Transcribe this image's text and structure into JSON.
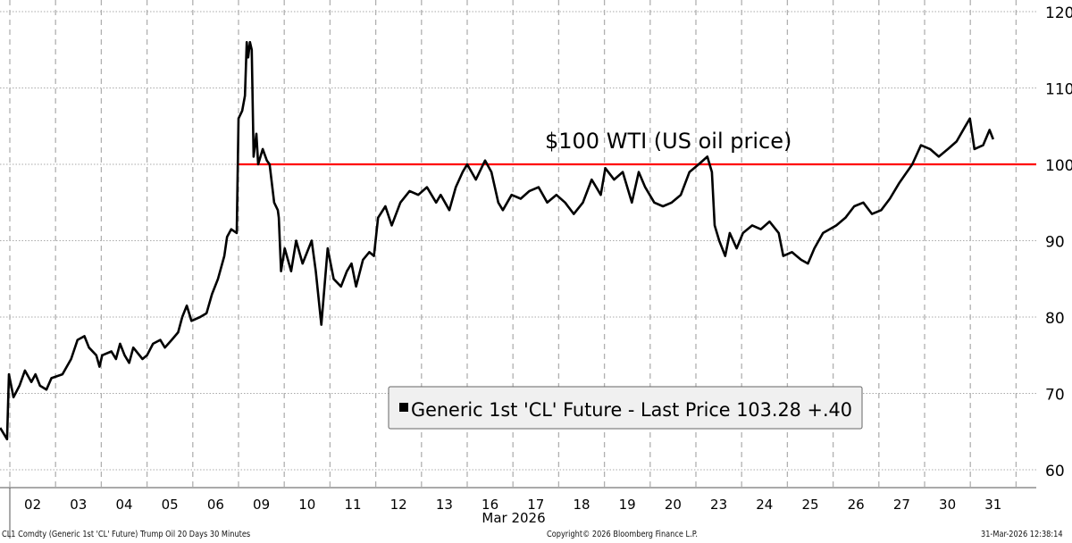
{
  "chart_data": {
    "type": "line",
    "title": "",
    "annotation": "$100 WTI (US oil price)",
    "reference_line": {
      "value": 100,
      "color": "#ff0000",
      "start_day_index": 5.0
    },
    "xlabel": "Mar 2026",
    "ylabel": "",
    "ylim": [
      60,
      120
    ],
    "yticks": [
      60,
      70,
      80,
      90,
      100,
      110,
      120
    ],
    "x_tick_labels": [
      "02",
      "03",
      "04",
      "05",
      "06",
      "09",
      "10",
      "11",
      "12",
      "13",
      "16",
      "17",
      "18",
      "19",
      "20",
      "23",
      "24",
      "25",
      "26",
      "27",
      "30",
      "31"
    ],
    "x_unit": "trading day index (0 = start of Mar 02)",
    "grid": true,
    "legend": {
      "placement": "bottom-center",
      "label": "Generic 1st 'CL' Future - Last Price",
      "last_value": "103.28",
      "change": "+.40"
    },
    "series": [
      {
        "name": "Generic 1st 'CL' Future - Last Price",
        "color": "#000000",
        "points": [
          [
            -0.21,
            65.5
          ],
          [
            -0.06,
            64.0
          ],
          [
            -0.02,
            72.5
          ],
          [
            0.08,
            69.5
          ],
          [
            0.21,
            71
          ],
          [
            0.33,
            73
          ],
          [
            0.47,
            71.5
          ],
          [
            0.56,
            72.5
          ],
          [
            0.66,
            71
          ],
          [
            0.8,
            70.5
          ],
          [
            0.91,
            72
          ],
          [
            1.15,
            72.5
          ],
          [
            1.34,
            74.5
          ],
          [
            1.48,
            77
          ],
          [
            1.63,
            77.5
          ],
          [
            1.73,
            76
          ],
          [
            1.89,
            75
          ],
          [
            1.96,
            73.5
          ],
          [
            2.02,
            75
          ],
          [
            2.22,
            75.5
          ],
          [
            2.32,
            74.5
          ],
          [
            2.41,
            76.5
          ],
          [
            2.51,
            75
          ],
          [
            2.61,
            74
          ],
          [
            2.7,
            76
          ],
          [
            2.9,
            74.5
          ],
          [
            3.0,
            75
          ],
          [
            3.13,
            76.5
          ],
          [
            3.29,
            77
          ],
          [
            3.39,
            76
          ],
          [
            3.54,
            77
          ],
          [
            3.68,
            78
          ],
          [
            3.77,
            80
          ],
          [
            3.87,
            81.5
          ],
          [
            3.97,
            79.5
          ],
          [
            4.16,
            80
          ],
          [
            4.3,
            80.5
          ],
          [
            4.42,
            83
          ],
          [
            4.55,
            85
          ],
          [
            4.69,
            88
          ],
          [
            4.75,
            90.5
          ],
          [
            4.84,
            91.5
          ],
          [
            4.96,
            91
          ],
          [
            5.0,
            106
          ],
          [
            5.08,
            107
          ],
          [
            5.14,
            109
          ],
          [
            5.18,
            116
          ],
          [
            5.21,
            114
          ],
          [
            5.25,
            116
          ],
          [
            5.29,
            115
          ],
          [
            5.33,
            101
          ],
          [
            5.39,
            104
          ],
          [
            5.43,
            100
          ],
          [
            5.53,
            102
          ],
          [
            5.62,
            100.5
          ],
          [
            5.68,
            100
          ],
          [
            5.78,
            95
          ],
          [
            5.86,
            94
          ],
          [
            5.88,
            93
          ],
          [
            5.93,
            86
          ],
          [
            6.01,
            89
          ],
          [
            6.15,
            86
          ],
          [
            6.26,
            90
          ],
          [
            6.4,
            87
          ],
          [
            6.6,
            90
          ],
          [
            6.69,
            86
          ],
          [
            6.81,
            79
          ],
          [
            6.95,
            89
          ],
          [
            7.08,
            85
          ],
          [
            7.24,
            84
          ],
          [
            7.37,
            86
          ],
          [
            7.47,
            87
          ],
          [
            7.57,
            84
          ],
          [
            7.72,
            87.5
          ],
          [
            7.86,
            88.5
          ],
          [
            7.96,
            88
          ],
          [
            8.05,
            93
          ],
          [
            8.21,
            94.5
          ],
          [
            8.35,
            92
          ],
          [
            8.54,
            95
          ],
          [
            8.74,
            96.5
          ],
          [
            8.93,
            96
          ],
          [
            9.12,
            97
          ],
          [
            9.32,
            95
          ],
          [
            9.42,
            96
          ],
          [
            9.61,
            94
          ],
          [
            9.75,
            97
          ],
          [
            9.9,
            99
          ],
          [
            10.0,
            100
          ],
          [
            10.19,
            98
          ],
          [
            10.39,
            100.5
          ],
          [
            10.53,
            99
          ],
          [
            10.68,
            95
          ],
          [
            10.78,
            94
          ],
          [
            10.97,
            96
          ],
          [
            11.17,
            95.5
          ],
          [
            11.36,
            96.5
          ],
          [
            11.56,
            97
          ],
          [
            11.75,
            95
          ],
          [
            11.95,
            96
          ],
          [
            12.14,
            95
          ],
          [
            12.33,
            93.5
          ],
          [
            12.53,
            95
          ],
          [
            12.72,
            98
          ],
          [
            12.82,
            97
          ],
          [
            12.92,
            96
          ],
          [
            13.02,
            99.5
          ],
          [
            13.21,
            98
          ],
          [
            13.4,
            99
          ],
          [
            13.6,
            95
          ],
          [
            13.75,
            99
          ],
          [
            13.89,
            97
          ],
          [
            14.09,
            95
          ],
          [
            14.28,
            94.5
          ],
          [
            14.47,
            95
          ],
          [
            14.67,
            96
          ],
          [
            14.86,
            99
          ],
          [
            15.06,
            100
          ],
          [
            15.25,
            101
          ],
          [
            15.35,
            99
          ],
          [
            15.41,
            92
          ],
          [
            15.51,
            90
          ],
          [
            15.64,
            88
          ],
          [
            15.74,
            91
          ],
          [
            15.89,
            89
          ],
          [
            16.03,
            91
          ],
          [
            16.23,
            92
          ],
          [
            16.42,
            91.5
          ],
          [
            16.61,
            92.5
          ],
          [
            16.81,
            91
          ],
          [
            16.91,
            88
          ],
          [
            17.1,
            88.5
          ],
          [
            17.3,
            87.5
          ],
          [
            17.45,
            87
          ],
          [
            17.59,
            89
          ],
          [
            17.78,
            91
          ],
          [
            18.07,
            92
          ],
          [
            18.27,
            93
          ],
          [
            18.46,
            94.5
          ],
          [
            18.66,
            95
          ],
          [
            18.85,
            93.5
          ],
          [
            19.05,
            94
          ],
          [
            19.24,
            95.5
          ],
          [
            19.44,
            97.5
          ],
          [
            19.73,
            100
          ],
          [
            19.92,
            102.5
          ],
          [
            20.12,
            102
          ],
          [
            20.31,
            101
          ],
          [
            20.51,
            102
          ],
          [
            20.7,
            103
          ],
          [
            20.89,
            105
          ],
          [
            20.99,
            106
          ],
          [
            21.09,
            102
          ],
          [
            21.28,
            102.5
          ],
          [
            21.42,
            104.5
          ],
          [
            21.5,
            103.28
          ]
        ]
      }
    ]
  },
  "footer": {
    "left": "CL1 Comdty (Generic 1st 'CL' Future) Trump Oil 20 Days 30 Minutes",
    "center": "Copyright© 2026 Bloomberg Finance L.P.",
    "right": "31-Mar-2026 12:38:14"
  }
}
